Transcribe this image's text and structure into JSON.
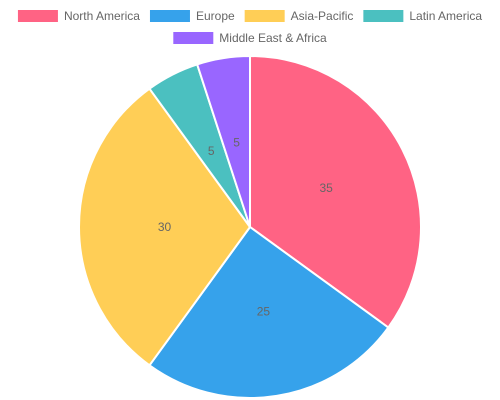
{
  "chart_data": {
    "type": "pie",
    "categories": [
      "North America",
      "Europe",
      "Asia-Pacific",
      "Latin America",
      "Middle East & Africa"
    ],
    "values": [
      35,
      25,
      30,
      5,
      5
    ],
    "colors": [
      "#ff6384",
      "#36a2eb",
      "#ffce56",
      "#4bc0c0",
      "#9966ff"
    ],
    "legend_position": "top",
    "data_labels": true
  }
}
